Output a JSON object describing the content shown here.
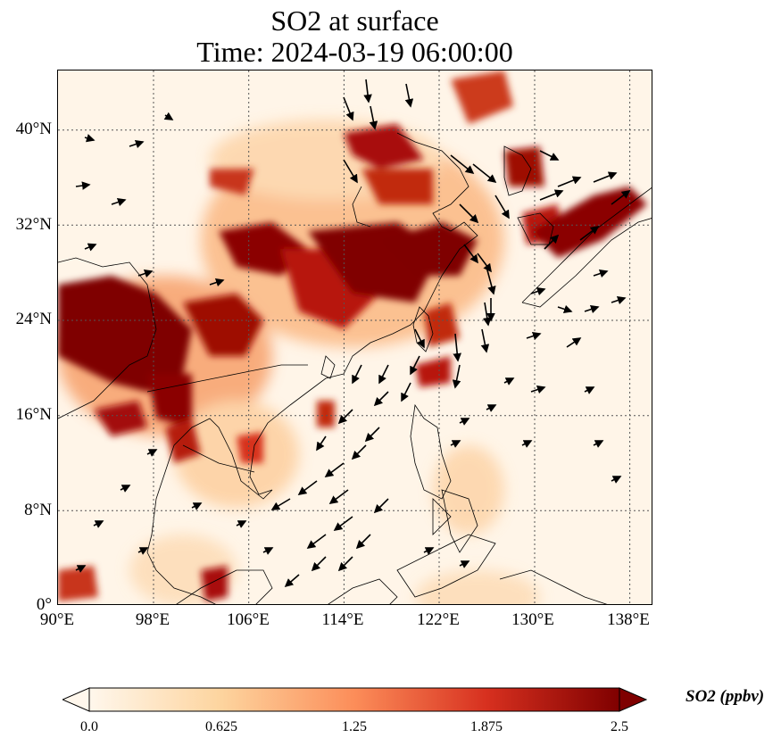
{
  "title": {
    "line1": "SO2 at surface",
    "line2": "Time: 2024-03-19 06:00:00"
  },
  "map": {
    "projection": "PlateCarree",
    "extent_lon": [
      90,
      140
    ],
    "extent_lat": [
      0,
      45
    ],
    "gridlines": "dotted",
    "field": "SO2",
    "colormap": "OrRd",
    "wind_vectors": "shown",
    "x_ticks": [
      "90°E",
      "98°E",
      "106°E",
      "114°E",
      "122°E",
      "130°E",
      "138°E"
    ],
    "x_tick_values": [
      90,
      98,
      106,
      114,
      122,
      130,
      138
    ],
    "y_ticks": [
      "40°N",
      "32°N",
      "24°N",
      "16°N",
      "8°N",
      "0°"
    ],
    "y_tick_values": [
      40,
      32,
      24,
      16,
      8,
      0
    ]
  },
  "colorbar": {
    "label": "SO2 (ppbv)",
    "ticks": [
      "0.0",
      "0.625",
      "1.25",
      "1.875",
      "2.5"
    ],
    "tick_values": [
      0,
      0.625,
      1.25,
      1.875,
      2.5
    ],
    "range": [
      0,
      2.5
    ],
    "extend": "both",
    "colors": [
      "#fff7ec",
      "#fdd49e",
      "#fc8d59",
      "#d7301f",
      "#7f0000"
    ]
  }
}
